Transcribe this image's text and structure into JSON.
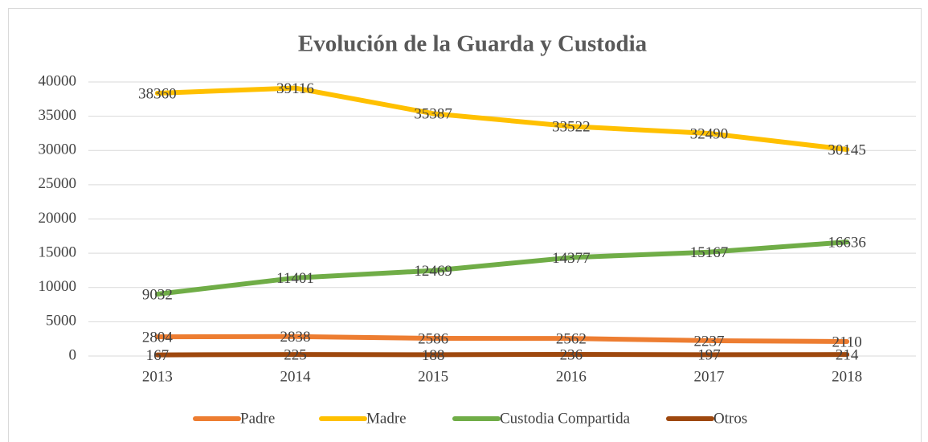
{
  "chart_data": {
    "type": "line",
    "title": "Evolución de la Guarda y Custodia",
    "categories": [
      "2013",
      "2014",
      "2015",
      "2016",
      "2017",
      "2018"
    ],
    "series": [
      {
        "name": "Padre",
        "color": "#ed7d31",
        "values": [
          2804,
          2838,
          2586,
          2562,
          2237,
          2110
        ]
      },
      {
        "name": "Madre",
        "color": "#ffc000",
        "values": [
          38360,
          39116,
          35387,
          33522,
          32490,
          30145
        ]
      },
      {
        "name": "Custodia Compartida",
        "color": "#70ad47",
        "values": [
          9032,
          11401,
          12469,
          14377,
          15167,
          16636
        ]
      },
      {
        "name": "Otros",
        "color": "#9e480e",
        "values": [
          167,
          225,
          188,
          236,
          197,
          214
        ]
      }
    ],
    "ylim": [
      0,
      40000
    ],
    "yticks": [
      0,
      5000,
      10000,
      15000,
      20000,
      25000,
      30000,
      35000,
      40000
    ],
    "grid": true,
    "legend": "bottom"
  }
}
